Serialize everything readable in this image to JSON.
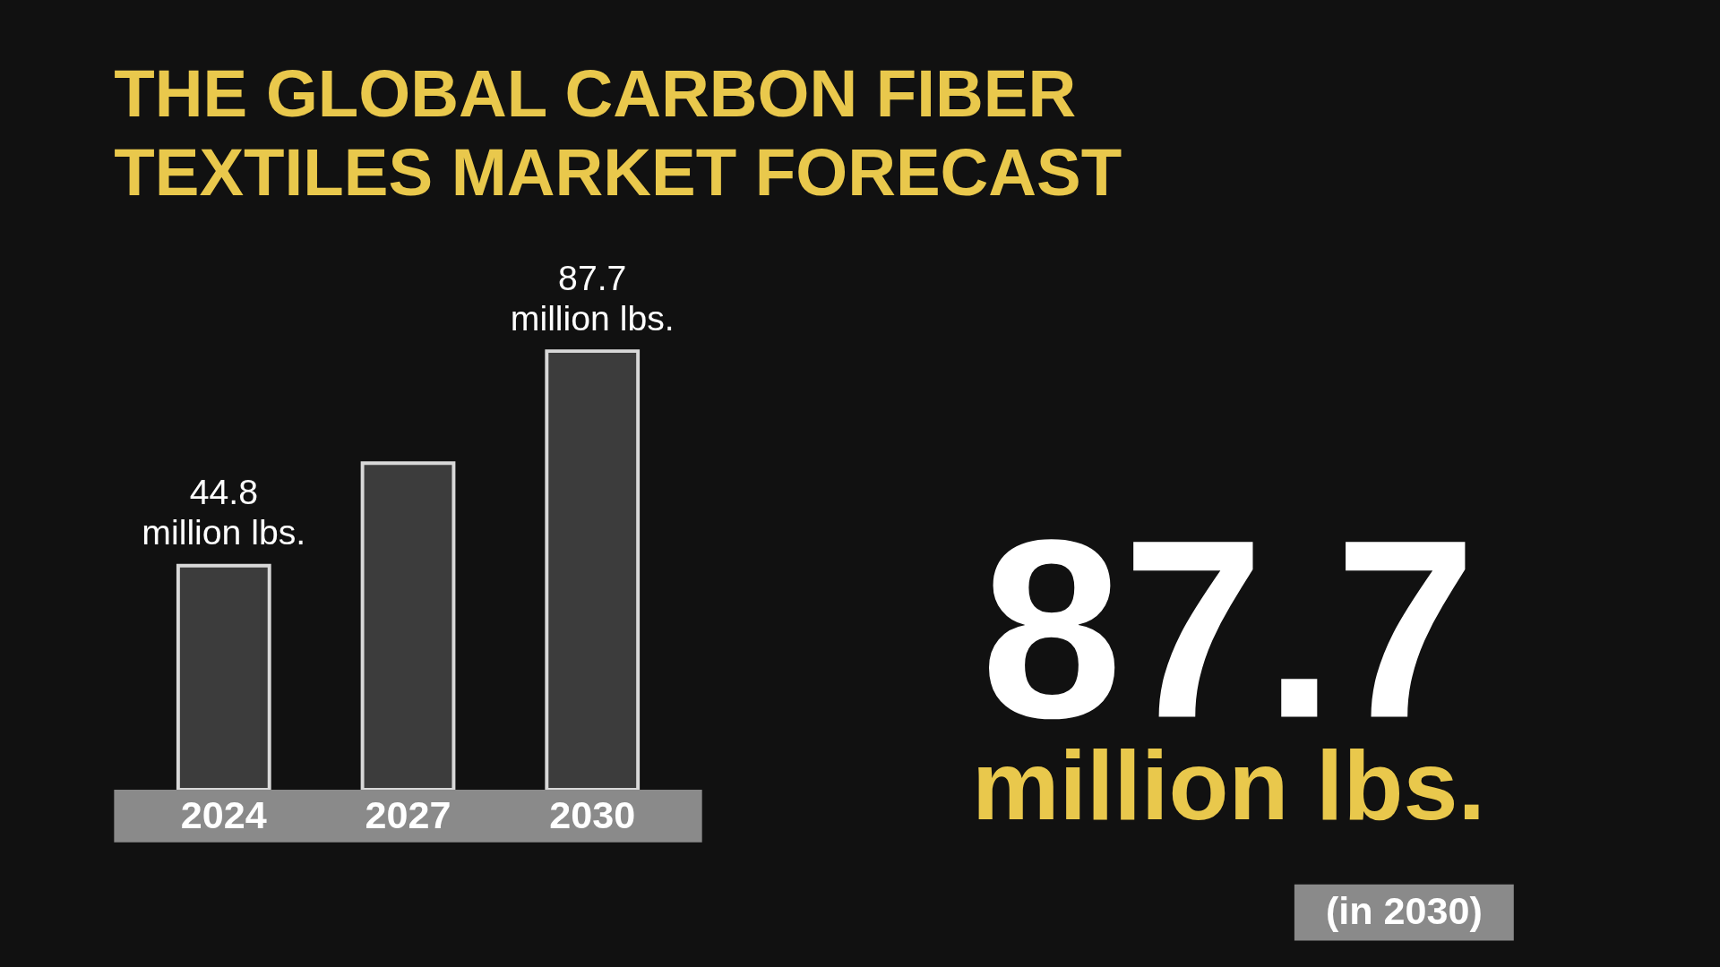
{
  "chart_data": {
    "type": "bar",
    "title": "THE GLOBAL CARBON FIBER TEXTILES MARKET FORECAST",
    "categories": [
      "2024",
      "2027",
      "2030"
    ],
    "values": [
      44.8,
      65.3,
      87.7
    ],
    "value_labels": [
      "44.8 million lbs.",
      null,
      "87.7 million lbs."
    ],
    "color": "#3c3c3c",
    "tick_labels": "x",
    "grid": false,
    "annotations": [
      "87.7",
      "million lbs.",
      "(in 2030)"
    ]
  }
}
